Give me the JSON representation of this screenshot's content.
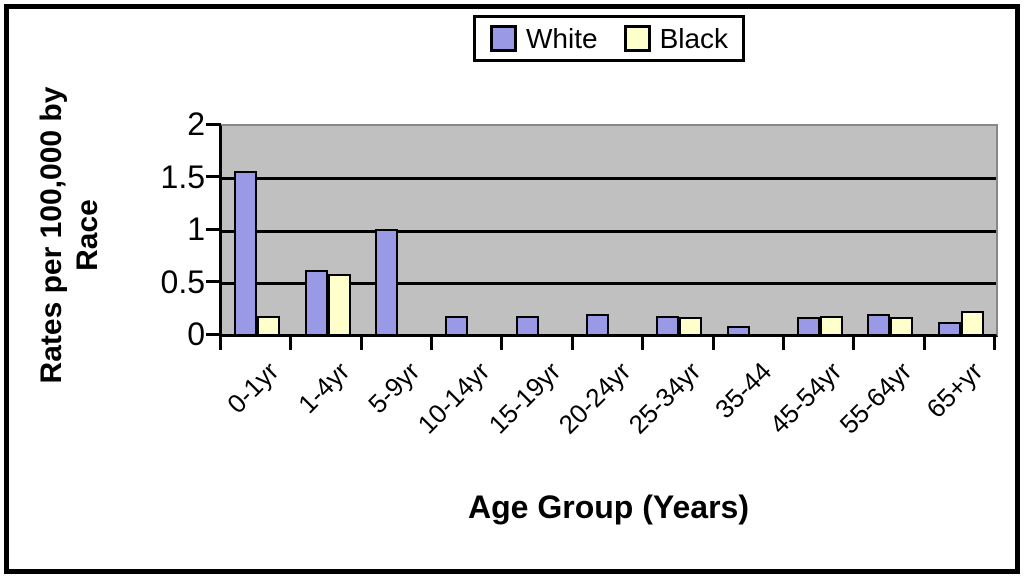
{
  "chart_data": {
    "type": "bar",
    "title": "",
    "xlabel": "Age Group (Years)",
    "ylabel": "Rates per 100,000 by Race",
    "ylabel_lines": [
      "Rates per 100,000 by",
      "Race"
    ],
    "categories": [
      "0-1yr",
      "1-4yr",
      "5-9yr",
      "10-14yr",
      "15-19yr",
      "20-24yr",
      "25-34yr",
      "35-44",
      "45-54yr",
      "55-64yr",
      "65+yr"
    ],
    "series": [
      {
        "name": "White",
        "color": "#9999e6",
        "values": [
          1.55,
          0.61,
          1.0,
          0.17,
          0.17,
          0.19,
          0.17,
          0.08,
          0.16,
          0.19,
          0.11
        ]
      },
      {
        "name": "Black",
        "color": "#ffffcc",
        "values": [
          0.17,
          0.57,
          0,
          0,
          0,
          0,
          0.16,
          0,
          0.17,
          0.16,
          0.22
        ]
      }
    ],
    "ylim": [
      0,
      2
    ],
    "yticks": [
      0,
      0.5,
      1,
      1.5,
      2
    ],
    "ytick_labels": [
      "0",
      "0.5",
      "1",
      "1.5",
      "2"
    ],
    "grid": true,
    "legend_position": "top-center",
    "plot_bg": "#c0c0c0",
    "gridline_color": "#000000",
    "text_color": "#000000"
  }
}
